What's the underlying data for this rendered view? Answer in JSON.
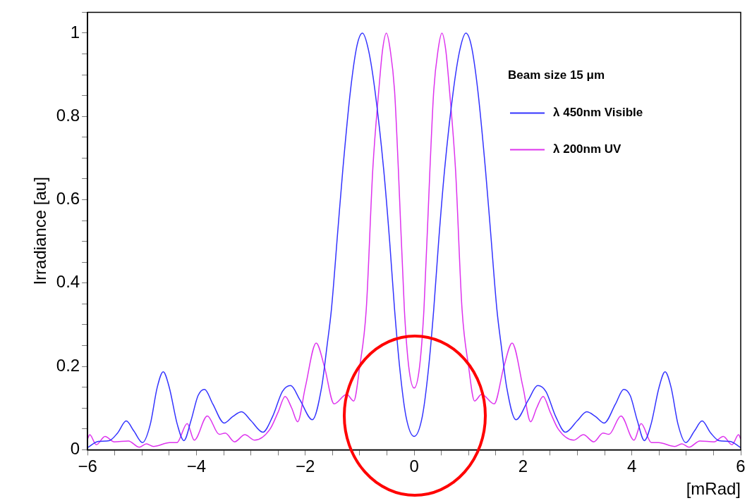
{
  "chart_data": {
    "type": "line",
    "xlabel": "[mRad]",
    "ylabel": "Irradiance [au]",
    "legend_title": "Beam size 15 μm",
    "legend": "top right",
    "marker": "none",
    "line_style": "solid",
    "grid": false,
    "xlim": [
      -6,
      6
    ],
    "ylim": [
      0,
      1.05
    ],
    "xticks": [
      {
        "value": -6,
        "label": "−6"
      },
      {
        "value": -5.5,
        "label": null
      },
      {
        "value": -5,
        "label": null
      },
      {
        "value": -4.5,
        "label": null
      },
      {
        "value": -4,
        "label": "−4"
      },
      {
        "value": -3.5,
        "label": null
      },
      {
        "value": -3,
        "label": null
      },
      {
        "value": -2.5,
        "label": null
      },
      {
        "value": -2,
        "label": "−2"
      },
      {
        "value": -1.5,
        "label": null
      },
      {
        "value": -1,
        "label": null
      },
      {
        "value": -0.5,
        "label": null
      },
      0,
      {
        "value": 0.5,
        "label": null
      },
      {
        "value": 1,
        "label": null
      },
      {
        "value": 1.5,
        "label": null
      },
      2,
      {
        "value": 2.5,
        "label": null
      },
      {
        "value": 3,
        "label": null
      },
      {
        "value": 3.5,
        "label": null
      },
      4,
      {
        "value": 4.5,
        "label": null
      },
      {
        "value": 5,
        "label": null
      },
      {
        "value": 5.5,
        "label": null
      },
      6
    ],
    "yticks": [
      0,
      {
        "value": 0.05,
        "label": null
      },
      {
        "value": 0.1,
        "label": null
      },
      {
        "value": 0.15,
        "label": null
      },
      0.2,
      {
        "value": 0.25,
        "label": null
      },
      {
        "value": 0.3,
        "label": null
      },
      {
        "value": 0.35,
        "label": null
      },
      0.4,
      {
        "value": 0.45,
        "label": null
      },
      {
        "value": 0.5,
        "label": null
      },
      {
        "value": 0.55,
        "label": null
      },
      0.6,
      {
        "value": 0.65,
        "label": null
      },
      {
        "value": 0.7,
        "label": null
      },
      {
        "value": 0.75,
        "label": null
      },
      0.8,
      {
        "value": 0.85,
        "label": null
      },
      {
        "value": 0.9,
        "label": null
      },
      {
        "value": 0.95,
        "label": null
      },
      1,
      {
        "value": 1.05,
        "label": null
      }
    ],
    "series": [
      {
        "name": "λ 450nm Visible",
        "color": "#3333ff",
        "x": [
          -6,
          -5.8,
          -5.6,
          -5.45,
          -5.29,
          -5.15,
          -4.99,
          -4.85,
          -4.72,
          -4.61,
          -4.5,
          -4.35,
          -4.23,
          -4.1,
          -3.97,
          -3.85,
          -3.7,
          -3.49,
          -3.33,
          -3.17,
          -3,
          -2.78,
          -2.6,
          -2.42,
          -2.27,
          -2.1,
          -1.87,
          -1.7,
          -1.6,
          -1.52,
          -1.4,
          -1.31,
          -1.17,
          -1.05,
          -0.95,
          -0.84,
          -0.72,
          -0.56,
          -0.45,
          -0.36,
          -0.26,
          -0.15,
          0,
          0.15,
          0.26,
          0.36,
          0.45,
          0.56,
          0.72,
          0.84,
          0.95,
          1.05,
          1.17,
          1.31,
          1.4,
          1.52,
          1.6,
          1.7,
          1.87,
          2.1,
          2.27,
          2.42,
          2.6,
          2.78,
          3,
          3.17,
          3.33,
          3.49,
          3.7,
          3.85,
          3.97,
          4.1,
          4.23,
          4.35,
          4.5,
          4.61,
          4.72,
          4.85,
          4.99,
          5.15,
          5.29,
          5.45,
          5.6,
          5.8,
          6
        ],
        "values": [
          0.005,
          0.02,
          0.022,
          0.04,
          0.069,
          0.045,
          0.017,
          0.06,
          0.15,
          0.187,
          0.15,
          0.06,
          0.022,
          0.07,
          0.13,
          0.145,
          0.11,
          0.064,
          0.08,
          0.091,
          0.07,
          0.042,
          0.08,
          0.14,
          0.154,
          0.12,
          0.072,
          0.15,
          0.25,
          0.337,
          0.53,
          0.673,
          0.862,
          0.97,
          1,
          0.96,
          0.862,
          0.673,
          0.5,
          0.337,
          0.19,
          0.08,
          0.032,
          0.08,
          0.19,
          0.337,
          0.5,
          0.673,
          0.862,
          0.96,
          1,
          0.97,
          0.862,
          0.673,
          0.53,
          0.337,
          0.25,
          0.15,
          0.072,
          0.12,
          0.154,
          0.14,
          0.08,
          0.042,
          0.07,
          0.091,
          0.08,
          0.064,
          0.11,
          0.145,
          0.13,
          0.07,
          0.022,
          0.06,
          0.15,
          0.187,
          0.15,
          0.06,
          0.017,
          0.045,
          0.069,
          0.04,
          0.022,
          0.02,
          0.005
        ]
      },
      {
        "name": "λ 200nm UV",
        "color": "#dd33ee",
        "x": [
          -6,
          -5.96,
          -5.84,
          -5.68,
          -5.51,
          -5.25,
          -5.05,
          -4.92,
          -4.79,
          -4.49,
          -4.36,
          -4.17,
          -4.04,
          -3.8,
          -3.58,
          -3.47,
          -3.3,
          -3.11,
          -2.93,
          -2.65,
          -2.5,
          -2.37,
          -2.25,
          -2.14,
          -2,
          -1.8,
          -1.65,
          -1.47,
          -1.24,
          -1.11,
          -1,
          -0.88,
          -0.76,
          -0.65,
          -0.58,
          -0.51,
          -0.44,
          -0.36,
          -0.29,
          -0.18,
          -0.1,
          0,
          0.1,
          0.18,
          0.29,
          0.36,
          0.44,
          0.51,
          0.58,
          0.65,
          0.76,
          0.88,
          1,
          1.11,
          1.24,
          1.47,
          1.65,
          1.8,
          2,
          2.14,
          2.25,
          2.37,
          2.5,
          2.65,
          2.93,
          3.11,
          3.3,
          3.47,
          3.58,
          3.8,
          4.04,
          4.17,
          4.36,
          4.49,
          4.79,
          4.92,
          5.05,
          5.25,
          5.51,
          5.68,
          5.84,
          5.96,
          6
        ],
        "values": [
          0.026,
          0.036,
          0.012,
          0.032,
          0.019,
          0.021,
          0.006,
          0.014,
          0.008,
          0.017,
          0.017,
          0.063,
          0.023,
          0.081,
          0.037,
          0.04,
          0.019,
          0.036,
          0.023,
          0.049,
          0.09,
          0.128,
          0.1,
          0.067,
          0.15,
          0.256,
          0.2,
          0.11,
          0.133,
          0.117,
          0.2,
          0.337,
          0.673,
          0.862,
          0.96,
          1,
          0.96,
          0.862,
          0.673,
          0.337,
          0.2,
          0.148,
          0.2,
          0.337,
          0.673,
          0.862,
          0.96,
          1,
          0.96,
          0.862,
          0.673,
          0.337,
          0.2,
          0.117,
          0.133,
          0.11,
          0.2,
          0.256,
          0.15,
          0.067,
          0.1,
          0.128,
          0.09,
          0.049,
          0.023,
          0.036,
          0.019,
          0.04,
          0.037,
          0.081,
          0.023,
          0.063,
          0.017,
          0.017,
          0.008,
          0.014,
          0.006,
          0.021,
          0.019,
          0.032,
          0.012,
          0.036,
          0.026
        ]
      }
    ]
  }
}
